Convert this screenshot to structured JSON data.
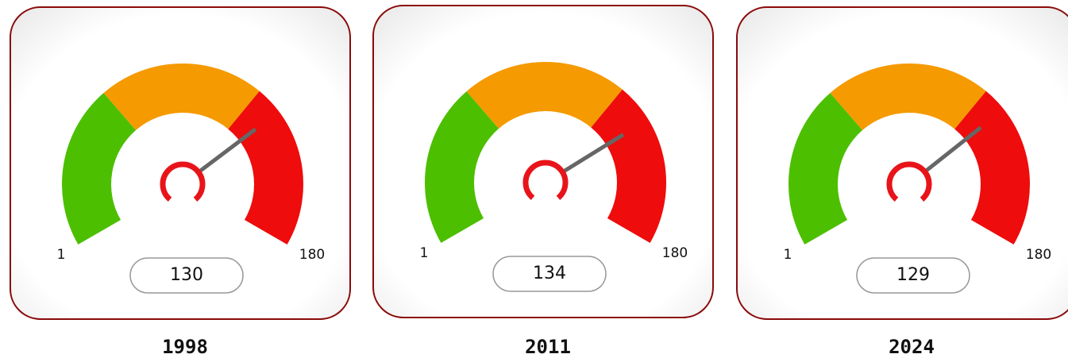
{
  "chart_data": [
    {
      "type": "gauge",
      "title": "1998",
      "min": 1,
      "max": 180,
      "value": 130,
      "bands": [
        {
          "from": 1,
          "to": 60,
          "color": "#4cbf00"
        },
        {
          "from": 60,
          "to": 120,
          "color": "#f59a00"
        },
        {
          "from": 120,
          "to": 180,
          "color": "#ee0c0c"
        }
      ]
    },
    {
      "type": "gauge",
      "title": "2011",
      "min": 1,
      "max": 180,
      "value": 134,
      "bands": [
        {
          "from": 1,
          "to": 60,
          "color": "#4cbf00"
        },
        {
          "from": 60,
          "to": 120,
          "color": "#f59a00"
        },
        {
          "from": 120,
          "to": 180,
          "color": "#ee0c0c"
        }
      ]
    },
    {
      "type": "gauge",
      "title": "2024",
      "min": 1,
      "max": 180,
      "value": 129,
      "bands": [
        {
          "from": 1,
          "to": 60,
          "color": "#4cbf00"
        },
        {
          "from": 60,
          "to": 120,
          "color": "#f59a00"
        },
        {
          "from": 120,
          "to": 180,
          "color": "#ee0c0c"
        }
      ]
    }
  ]
}
